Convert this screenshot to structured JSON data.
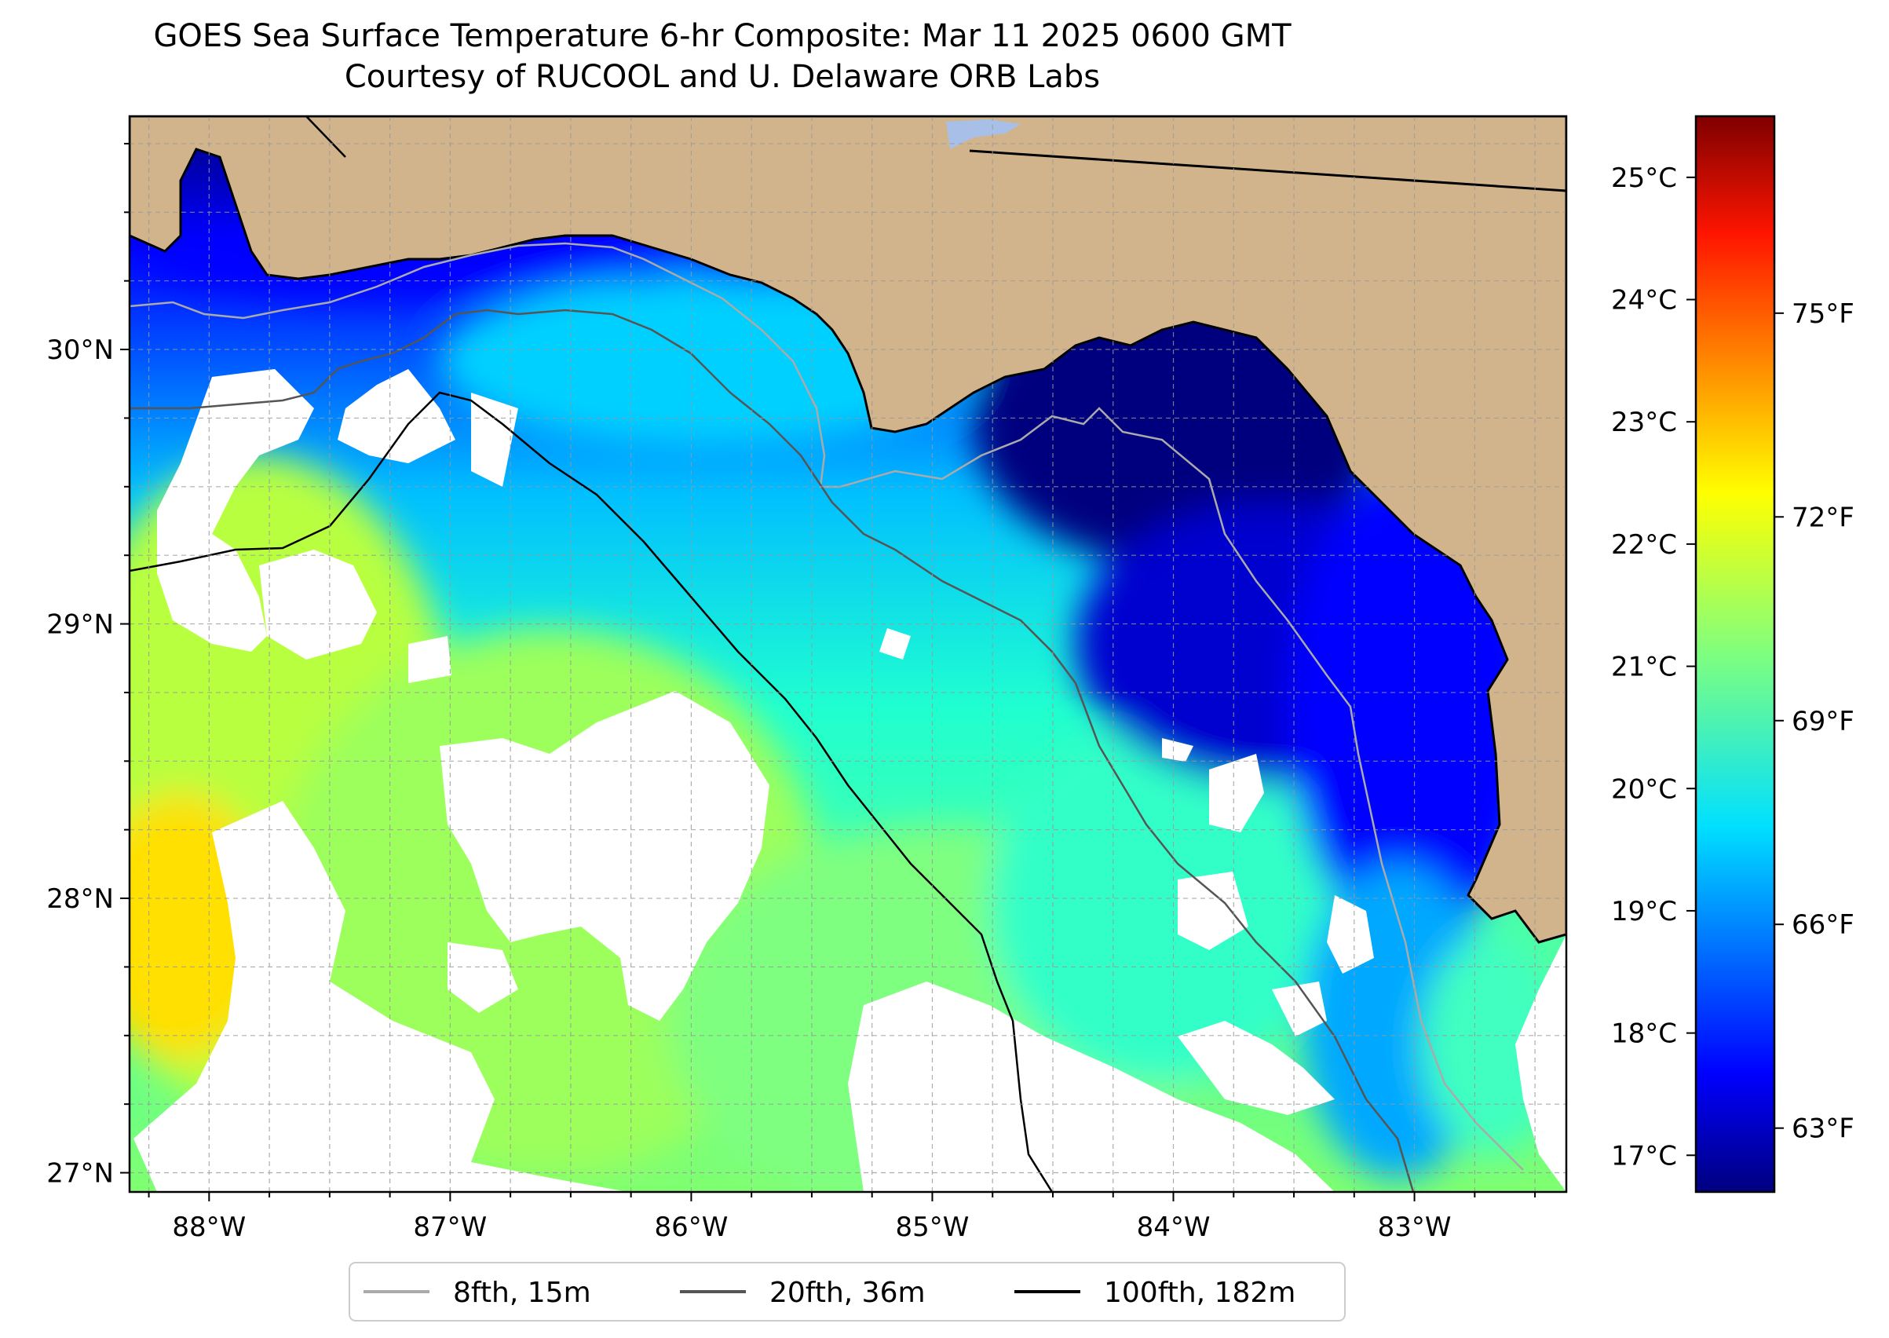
{
  "title": {
    "line1": "GOES Sea Surface Temperature 6-hr Composite: Mar 11 2025 0600 GMT",
    "line2": "Courtesy of RUCOOL and U. Delaware ORB Labs"
  },
  "map": {
    "lon_range": [
      -88.33,
      -82.37
    ],
    "lat_range": [
      26.93,
      30.85
    ],
    "lon_ticks": [
      {
        "value": -88,
        "label": "88°W"
      },
      {
        "value": -87,
        "label": "87°W"
      },
      {
        "value": -86,
        "label": "86°W"
      },
      {
        "value": -85,
        "label": "85°W"
      },
      {
        "value": -84,
        "label": "84°W"
      },
      {
        "value": -83,
        "label": "83°W"
      }
    ],
    "lat_ticks": [
      {
        "value": 27,
        "label": "27°N"
      },
      {
        "value": 28,
        "label": "28°N"
      },
      {
        "value": 29,
        "label": "29°N"
      },
      {
        "value": 30,
        "label": "30°N"
      }
    ],
    "land_color": "#d2b48c",
    "no_data_color": "#ffffff",
    "gridlines": "dashed gray every 0.25°"
  },
  "colorbar": {
    "colormap": "jet",
    "range_c": [
      16.7,
      25.5
    ],
    "celsius_ticks": [
      {
        "value": 17,
        "label": "17°C"
      },
      {
        "value": 18,
        "label": "18°C"
      },
      {
        "value": 19,
        "label": "19°C"
      },
      {
        "value": 20,
        "label": "20°C"
      },
      {
        "value": 21,
        "label": "21°C"
      },
      {
        "value": 22,
        "label": "22°C"
      },
      {
        "value": 23,
        "label": "23°C"
      },
      {
        "value": 24,
        "label": "24°C"
      },
      {
        "value": 25,
        "label": "25°C"
      }
    ],
    "fahrenheit_ticks": [
      {
        "value": 63,
        "label": "63°F"
      },
      {
        "value": 66,
        "label": "66°F"
      },
      {
        "value": 69,
        "label": "69°F"
      },
      {
        "value": 72,
        "label": "72°F"
      },
      {
        "value": 75,
        "label": "75°F"
      }
    ]
  },
  "legend": {
    "items": [
      {
        "label": "8fth, 15m",
        "color": "#aaaaaa"
      },
      {
        "label": "20fth, 36m",
        "color": "#555555"
      },
      {
        "label": "100fth, 182m",
        "color": "#000000"
      }
    ]
  }
}
